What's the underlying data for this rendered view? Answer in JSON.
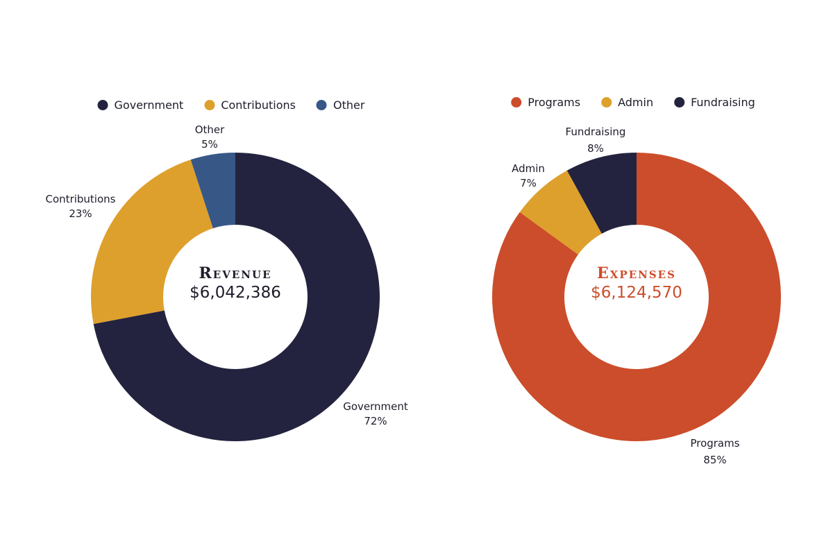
{
  "chart_data": [
    {
      "type": "pie",
      "variant": "donut",
      "center_title": "Revenue",
      "center_value": "$6,042,386",
      "center_color": "#000000",
      "legend_placement": "top",
      "categories": [
        "Government",
        "Contributions",
        "Other"
      ],
      "values": [
        72,
        23,
        5
      ],
      "value_labels": [
        "72%",
        "23%",
        "5%"
      ],
      "colors": [
        "#23233f",
        "#dea02c",
        "#375787"
      ]
    },
    {
      "type": "pie",
      "variant": "donut",
      "center_title": "Expenses",
      "center_value": "$6,124,570",
      "center_color": "#cc4d2b",
      "legend_placement": "top",
      "categories": [
        "Programs",
        "Admin",
        "Fundraising"
      ],
      "values": [
        85,
        7,
        8
      ],
      "value_labels": [
        "85%",
        "7%",
        "8%"
      ],
      "colors": [
        "#cc4d2b",
        "#dea02c",
        "#23233f"
      ]
    }
  ]
}
